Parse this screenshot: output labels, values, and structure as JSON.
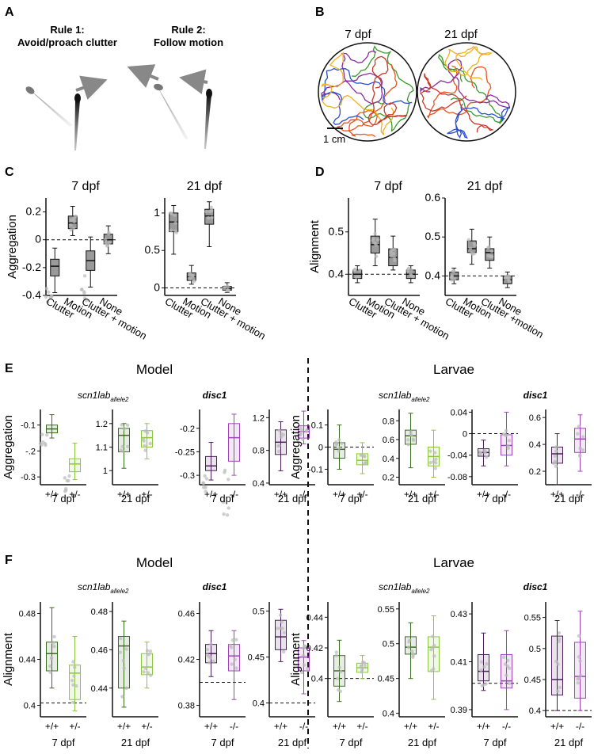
{
  "panel_letters": {
    "A": "A",
    "B": "B",
    "C": "C",
    "D": "D",
    "E": "E",
    "F": "F"
  },
  "panelA": {
    "rule1_title": "Rule 1:",
    "rule1_text": "Avoid/proach clutter",
    "rule2_title": "Rule 2:",
    "rule2_text": "Follow motion"
  },
  "panelB": {
    "age1": "7 dpf",
    "age2": "21 dpf",
    "scale_label": "1 cm",
    "track_colors": [
      "#3a9a2c",
      "#e8531c",
      "#8a2b9b",
      "#2b4fcf",
      "#f0b21c",
      "#c93a2a"
    ]
  },
  "colors": {
    "gray_box": "#9a9a9a",
    "wt_green": "#3c6b22",
    "het_green": "#8cc63f",
    "wt_purple": "#4a1f57",
    "het_purple": "#a045b8"
  },
  "labels": {
    "aggregation": "Aggregation",
    "alignment": "Alignment",
    "model": "Model",
    "larvae": "Larvae",
    "scn1lab": "scn1lab",
    "allele": "allele2",
    "disc1": "disc1",
    "wt": "+/+",
    "het_plus": "+/-",
    "het_minus": "-/-",
    "age7": "7 dpf",
    "age21": "21 dpf"
  },
  "panelC": {
    "cat_a": [
      "Clutter",
      "Motion",
      "Clutter + motion",
      "None"
    ],
    "cat_b": [
      "Clutter",
      "Motion",
      "Clutter + motion",
      "None"
    ],
    "chart_data": [
      {
        "type": "box",
        "title": "7 dpf",
        "ylabel": "Aggregation",
        "categories": [
          "Clutter",
          "Motion",
          "Clutter + motion",
          "None"
        ],
        "ylim": [
          -0.4,
          0.3
        ],
        "yticks": [
          "-0.4",
          "-0.2",
          "0",
          "0.2"
        ],
        "reference_line": 0,
        "boxes": [
          {
            "q1": -0.26,
            "median": -0.19,
            "q3": -0.14,
            "wlo": -0.38,
            "whi": -0.06
          },
          {
            "q1": 0.08,
            "median": 0.12,
            "q3": 0.17,
            "wlo": 0.03,
            "whi": 0.24
          },
          {
            "q1": -0.22,
            "median": -0.15,
            "q3": -0.08,
            "wlo": -0.34,
            "whi": 0.02
          },
          {
            "q1": -0.03,
            "median": 0.0,
            "q3": 0.04,
            "wlo": -0.1,
            "whi": 0.1
          }
        ]
      },
      {
        "type": "box",
        "title": "21 dpf",
        "categories": [
          "Clutter",
          "Motion",
          "Clutter + motion",
          "None"
        ],
        "ylim": [
          -0.1,
          1.2
        ],
        "yticks": [
          "0",
          "0.5",
          "1"
        ],
        "reference_line": 0,
        "boxes": [
          {
            "q1": 0.75,
            "median": 0.88,
            "q3": 1.0,
            "wlo": 0.45,
            "whi": 1.1
          },
          {
            "q1": 0.1,
            "median": 0.15,
            "q3": 0.2,
            "wlo": 0.05,
            "whi": 0.3
          },
          {
            "q1": 0.85,
            "median": 0.96,
            "q3": 1.05,
            "wlo": 0.55,
            "whi": 1.15
          },
          {
            "q1": -0.03,
            "median": -0.01,
            "q3": 0.02,
            "wlo": -0.06,
            "whi": 0.07
          }
        ]
      }
    ]
  },
  "panelD": {
    "cat_a": [
      "Clutter",
      "Motion",
      "Clutter + motion",
      "None"
    ],
    "cat_b": [
      "Clutter",
      "Motion",
      "Clutter +motion",
      "None"
    ],
    "chart_data": [
      {
        "type": "box",
        "title": "7 dpf",
        "ylabel": "Alignment",
        "categories": [
          "Clutter",
          "Motion",
          "Clutter + motion",
          "None"
        ],
        "ylim": [
          0.35,
          0.58
        ],
        "yticks": [
          "0.4",
          "0.5"
        ],
        "reference_line": 0.4,
        "boxes": [
          {
            "q1": 0.39,
            "median": 0.4,
            "q3": 0.41,
            "wlo": 0.38,
            "whi": 0.42
          },
          {
            "q1": 0.45,
            "median": 0.47,
            "q3": 0.49,
            "wlo": 0.42,
            "whi": 0.53
          },
          {
            "q1": 0.42,
            "median": 0.44,
            "q3": 0.46,
            "wlo": 0.41,
            "whi": 0.49
          },
          {
            "q1": 0.39,
            "median": 0.4,
            "q3": 0.41,
            "wlo": 0.38,
            "whi": 0.42
          }
        ]
      },
      {
        "type": "box",
        "title": "21 dpf",
        "categories": [
          "Clutter",
          "Motion",
          "Clutter +motion",
          "None"
        ],
        "ylim": [
          0.35,
          0.6
        ],
        "yticks": [
          "0.4",
          "0.5",
          "0.6"
        ],
        "reference_line": 0.4,
        "boxes": [
          {
            "q1": 0.39,
            "median": 0.4,
            "q3": 0.41,
            "wlo": 0.38,
            "whi": 0.42
          },
          {
            "q1": 0.46,
            "median": 0.47,
            "q3": 0.49,
            "wlo": 0.43,
            "whi": 0.52
          },
          {
            "q1": 0.44,
            "median": 0.46,
            "q3": 0.47,
            "wlo": 0.42,
            "whi": 0.5
          },
          {
            "q1": 0.38,
            "median": 0.39,
            "q3": 0.4,
            "wlo": 0.37,
            "whi": 0.41
          }
        ]
      }
    ]
  },
  "panelE": {
    "chart_data": [
      {
        "type": "box",
        "gene": "scn1lab",
        "age": "7 dpf",
        "ylabel": "Aggregation",
        "ylim": [
          -0.33,
          -0.04
        ],
        "yticks": [
          "-0.1",
          "-.2",
          "-0.3"
        ],
        "boxes": [
          {
            "q1": -0.13,
            "median": -0.115,
            "q3": -0.1,
            "wlo": -0.15,
            "whi": -0.06
          },
          {
            "q1": -0.28,
            "median": -0.25,
            "q3": -0.23,
            "wlo": -0.31,
            "whi": -0.17
          }
        ]
      },
      {
        "type": "box",
        "gene": "scn1lab",
        "age": "21 dpf",
        "ylim": [
          0.94,
          1.26
        ],
        "yticks": [
          "1",
          "1.1",
          "1.2"
        ],
        "boxes": [
          {
            "q1": 1.08,
            "median": 1.15,
            "q3": 1.18,
            "wlo": 1.01,
            "whi": 1.2
          },
          {
            "q1": 1.1,
            "median": 1.14,
            "q3": 1.17,
            "wlo": 1.05,
            "whi": 1.2
          }
        ]
      },
      {
        "type": "box",
        "gene": "disc1",
        "age": "7 dpf",
        "ylim": [
          -0.32,
          -0.16
        ],
        "yticks": [
          "-0.2",
          "-0.25",
          "-0.3"
        ],
        "boxes": [
          {
            "q1": -0.29,
            "median": -0.28,
            "q3": -0.26,
            "wlo": -0.31,
            "whi": -0.23
          },
          {
            "q1": -0.27,
            "median": -0.22,
            "q3": -0.19,
            "wlo": -0.3,
            "whi": -0.17
          }
        ]
      },
      {
        "type": "box",
        "gene": "disc1",
        "age": "21 dpf",
        "ylim": [
          0.38,
          1.3
        ],
        "yticks": [
          "0.4",
          "0.8",
          "1.2"
        ],
        "boxes": [
          {
            "q1": 0.75,
            "median": 0.9,
            "q3": 1.05,
            "wlo": 0.55,
            "whi": 1.15
          },
          {
            "q1": 0.95,
            "median": 1.03,
            "q3": 1.1,
            "wlo": 0.88,
            "whi": 1.28
          }
        ]
      },
      {
        "type": "box",
        "gene": "scn1lab",
        "age": "7 dpf",
        "ylabel": "Aggregation",
        "ylim": [
          -0.17,
          0.17
        ],
        "yticks": [
          "0.1",
          "0",
          "-0.1"
        ],
        "reference_line": 0,
        "boxes": [
          {
            "q1": -0.05,
            "median": -0.01,
            "q3": 0.02,
            "wlo": -0.1,
            "whi": 0.1
          },
          {
            "q1": -0.08,
            "median": -0.06,
            "q3": -0.03,
            "wlo": -0.12,
            "whi": 0.02
          }
        ]
      },
      {
        "type": "box",
        "gene": "scn1lab",
        "age": "21 dpf",
        "ylim": [
          0.12,
          0.92
        ],
        "yticks": [
          "0.8",
          "0.6",
          "0.4",
          "0.2"
        ],
        "boxes": [
          {
            "q1": 0.55,
            "median": 0.64,
            "q3": 0.7,
            "wlo": 0.3,
            "whi": 0.88
          },
          {
            "q1": 0.32,
            "median": 0.42,
            "q3": 0.52,
            "wlo": 0.2,
            "whi": 0.7
          }
        ]
      },
      {
        "type": "box",
        "gene": "disc1",
        "age": "7 dpf",
        "ylim": [
          -0.095,
          0.045
        ],
        "yticks": [
          "0.04",
          "0",
          "-0.04",
          "-0.08"
        ],
        "reference_line": 0,
        "boxes": [
          {
            "q1": -0.042,
            "median": -0.035,
            "q3": -0.028,
            "wlo": -0.06,
            "whi": -0.012
          },
          {
            "q1": -0.04,
            "median": -0.022,
            "q3": -0.002,
            "wlo": -0.06,
            "whi": 0.04
          }
        ]
      },
      {
        "type": "box",
        "gene": "disc1",
        "age": "21 dpf",
        "ylim": [
          0.1,
          0.66
        ],
        "yticks": [
          "0.6",
          "0.4",
          "0.2"
        ],
        "boxes": [
          {
            "q1": 0.26,
            "median": 0.33,
            "q3": 0.38,
            "wlo": 0.1,
            "whi": 0.48
          },
          {
            "q1": 0.34,
            "median": 0.44,
            "q3": 0.52,
            "wlo": 0.2,
            "whi": 0.62
          }
        ]
      }
    ]
  },
  "panelF": {
    "chart_data": [
      {
        "type": "box",
        "gene": "scn1lab",
        "age": "7 dpf",
        "ylabel": "Alignment",
        "ylim": [
          0.39,
          0.49
        ],
        "yticks": [
          "0.48",
          "0.44",
          "0.4"
        ],
        "reference_line": 0.402,
        "boxes": [
          {
            "q1": 0.43,
            "median": 0.445,
            "q3": 0.455,
            "wlo": 0.415,
            "whi": 0.485
          },
          {
            "q1": 0.405,
            "median": 0.428,
            "q3": 0.435,
            "wlo": 0.395,
            "whi": 0.46
          }
        ]
      },
      {
        "type": "box",
        "gene": "scn1lab",
        "age": "21 dpf",
        "ylim": [
          0.425,
          0.485
        ],
        "yticks": [
          "0.48",
          "0.46",
          "0.44"
        ],
        "boxes": [
          {
            "q1": 0.44,
            "median": 0.462,
            "q3": 0.467,
            "wlo": 0.43,
            "whi": 0.475
          },
          {
            "q1": 0.447,
            "median": 0.451,
            "q3": 0.458,
            "wlo": 0.44,
            "whi": 0.464
          }
        ]
      },
      {
        "type": "box",
        "gene": "disc1",
        "age": "7 dpf",
        "ylim": [
          0.37,
          0.47
        ],
        "yticks": [
          "0.46",
          "0.42",
          "0.38"
        ],
        "reference_line": 0.4,
        "boxes": [
          {
            "q1": 0.417,
            "median": 0.425,
            "q3": 0.433,
            "wlo": 0.405,
            "whi": 0.445
          },
          {
            "q1": 0.41,
            "median": 0.423,
            "q3": 0.433,
            "wlo": 0.385,
            "whi": 0.445
          }
        ]
      },
      {
        "type": "box",
        "gene": "disc1",
        "age": "21 dpf",
        "ylim": [
          0.385,
          0.51
        ],
        "yticks": [
          "0.5",
          "0.45",
          "0.4"
        ],
        "reference_line": 0.4,
        "boxes": [
          {
            "q1": 0.458,
            "median": 0.472,
            "q3": 0.49,
            "wlo": 0.445,
            "whi": 0.502
          },
          {
            "q1": 0.435,
            "median": 0.45,
            "q3": 0.46,
            "wlo": 0.41,
            "whi": 0.468
          }
        ]
      },
      {
        "type": "box",
        "gene": "scn1lab",
        "age": "7 dpf",
        "ylabel": "Alignment",
        "ylim": [
          0.375,
          0.45
        ],
        "yticks": [
          "0.44",
          "0.42",
          "0.4"
        ],
        "reference_line": 0.4,
        "boxes": [
          {
            "q1": 0.395,
            "median": 0.405,
            "q3": 0.415,
            "wlo": 0.385,
            "whi": 0.425
          },
          {
            "q1": 0.404,
            "median": 0.407,
            "q3": 0.41,
            "wlo": 0.4,
            "whi": 0.415
          }
        ]
      },
      {
        "type": "box",
        "gene": "scn1lab",
        "age": "21 dpf",
        "ylim": [
          0.395,
          0.56
        ],
        "yticks": [
          "0.55",
          "0.5",
          "0.45",
          "0.4"
        ],
        "boxes": [
          {
            "q1": 0.485,
            "median": 0.495,
            "q3": 0.51,
            "wlo": 0.45,
            "whi": 0.53
          },
          {
            "q1": 0.46,
            "median": 0.495,
            "q3": 0.51,
            "wlo": 0.42,
            "whi": 0.54
          }
        ]
      },
      {
        "type": "box",
        "gene": "disc1",
        "age": "7 dpf",
        "ylim": [
          0.387,
          0.435
        ],
        "yticks": [
          "0.43",
          "0.41",
          "0.39"
        ],
        "reference_line": 0.401,
        "boxes": [
          {
            "q1": 0.402,
            "median": 0.406,
            "q3": 0.413,
            "wlo": 0.398,
            "whi": 0.422
          },
          {
            "q1": 0.399,
            "median": 0.402,
            "q3": 0.413,
            "wlo": 0.39,
            "whi": 0.423
          }
        ]
      },
      {
        "type": "box",
        "gene": "disc1",
        "age": "21 dpf",
        "ylim": [
          0.39,
          0.575
        ],
        "yticks": [
          "0.55",
          "0.5",
          "0.45",
          "0.4"
        ],
        "reference_line": 0.4,
        "boxes": [
          {
            "q1": 0.425,
            "median": 0.45,
            "q3": 0.52,
            "wlo": 0.4,
            "whi": 0.545
          },
          {
            "q1": 0.42,
            "median": 0.455,
            "q3": 0.51,
            "wlo": 0.4,
            "whi": 0.56
          }
        ]
      }
    ]
  }
}
